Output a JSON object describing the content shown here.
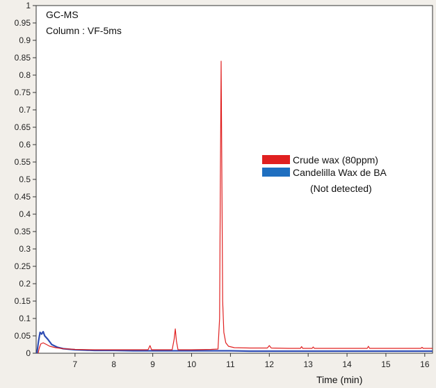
{
  "chart_data": {
    "type": "line",
    "annotations": [
      "GC-MS",
      "Column : VF-5ms"
    ],
    "xlabel": "Time (min)",
    "ylabel": "",
    "xlim": [
      6.0,
      16.2
    ],
    "ylim": [
      0,
      1
    ],
    "xticks": [
      7,
      8,
      9,
      10,
      11,
      12,
      13,
      14,
      15,
      16
    ],
    "yticks": [
      "0",
      "0.05",
      "0.1",
      "0.15",
      "0.2",
      "0.25",
      "0.3",
      "0.35",
      "0.4",
      "0.45",
      "0.5",
      "0.55",
      "0.6",
      "0.65",
      "0.7",
      "0.75",
      "0.8",
      "0.85",
      "0.9",
      "0.95",
      "1"
    ],
    "grid": false,
    "legend_placement": "center-right",
    "legend_note": "(Not detected)",
    "series": [
      {
        "name": "Crude wax (80ppm)",
        "color": "#e02020",
        "points": [
          [
            6.05,
            0.0
          ],
          [
            6.08,
            0.015
          ],
          [
            6.12,
            0.027
          ],
          [
            6.18,
            0.03
          ],
          [
            6.25,
            0.026
          ],
          [
            6.35,
            0.02
          ],
          [
            6.5,
            0.016
          ],
          [
            6.7,
            0.013
          ],
          [
            7.0,
            0.011
          ],
          [
            7.5,
            0.01
          ],
          [
            8.0,
            0.01
          ],
          [
            8.5,
            0.01
          ],
          [
            8.88,
            0.01
          ],
          [
            8.93,
            0.022
          ],
          [
            8.97,
            0.01
          ],
          [
            9.3,
            0.01
          ],
          [
            9.5,
            0.01
          ],
          [
            9.55,
            0.04
          ],
          [
            9.58,
            0.07
          ],
          [
            9.61,
            0.035
          ],
          [
            9.65,
            0.01
          ],
          [
            10.0,
            0.01
          ],
          [
            10.5,
            0.011
          ],
          [
            10.68,
            0.012
          ],
          [
            10.72,
            0.1
          ],
          [
            10.74,
            0.5
          ],
          [
            10.76,
            0.84
          ],
          [
            10.78,
            0.5
          ],
          [
            10.8,
            0.15
          ],
          [
            10.83,
            0.06
          ],
          [
            10.88,
            0.03
          ],
          [
            10.95,
            0.02
          ],
          [
            11.1,
            0.016
          ],
          [
            11.5,
            0.015
          ],
          [
            11.95,
            0.015
          ],
          [
            12.0,
            0.022
          ],
          [
            12.05,
            0.015
          ],
          [
            12.5,
            0.014
          ],
          [
            12.8,
            0.014
          ],
          [
            12.83,
            0.019
          ],
          [
            12.86,
            0.014
          ],
          [
            13.1,
            0.014
          ],
          [
            13.13,
            0.018
          ],
          [
            13.16,
            0.014
          ],
          [
            14.0,
            0.014
          ],
          [
            14.52,
            0.014
          ],
          [
            14.55,
            0.02
          ],
          [
            14.58,
            0.014
          ],
          [
            15.0,
            0.014
          ],
          [
            15.5,
            0.014
          ],
          [
            15.9,
            0.014
          ],
          [
            15.93,
            0.017
          ],
          [
            15.96,
            0.014
          ],
          [
            16.2,
            0.014
          ]
        ]
      },
      {
        "name": "Candelilla Wax de BA",
        "color": "#2e4cb3",
        "points": [
          [
            6.02,
            0.0
          ],
          [
            6.06,
            0.035
          ],
          [
            6.1,
            0.06
          ],
          [
            6.14,
            0.055
          ],
          [
            6.18,
            0.062
          ],
          [
            6.22,
            0.05
          ],
          [
            6.3,
            0.04
          ],
          [
            6.4,
            0.025
          ],
          [
            6.55,
            0.017
          ],
          [
            6.7,
            0.013
          ],
          [
            7.0,
            0.01
          ],
          [
            7.5,
            0.008
          ],
          [
            8.0,
            0.008
          ],
          [
            8.5,
            0.007
          ],
          [
            9.0,
            0.007
          ],
          [
            9.5,
            0.007
          ],
          [
            10.0,
            0.007
          ],
          [
            10.5,
            0.007
          ],
          [
            11.0,
            0.007
          ],
          [
            11.5,
            0.006
          ],
          [
            12.0,
            0.006
          ],
          [
            12.5,
            0.006
          ],
          [
            13.0,
            0.006
          ],
          [
            13.5,
            0.006
          ],
          [
            14.0,
            0.006
          ],
          [
            14.5,
            0.006
          ],
          [
            15.0,
            0.006
          ],
          [
            15.5,
            0.006
          ],
          [
            16.0,
            0.006
          ],
          [
            16.2,
            0.006
          ]
        ]
      }
    ]
  }
}
